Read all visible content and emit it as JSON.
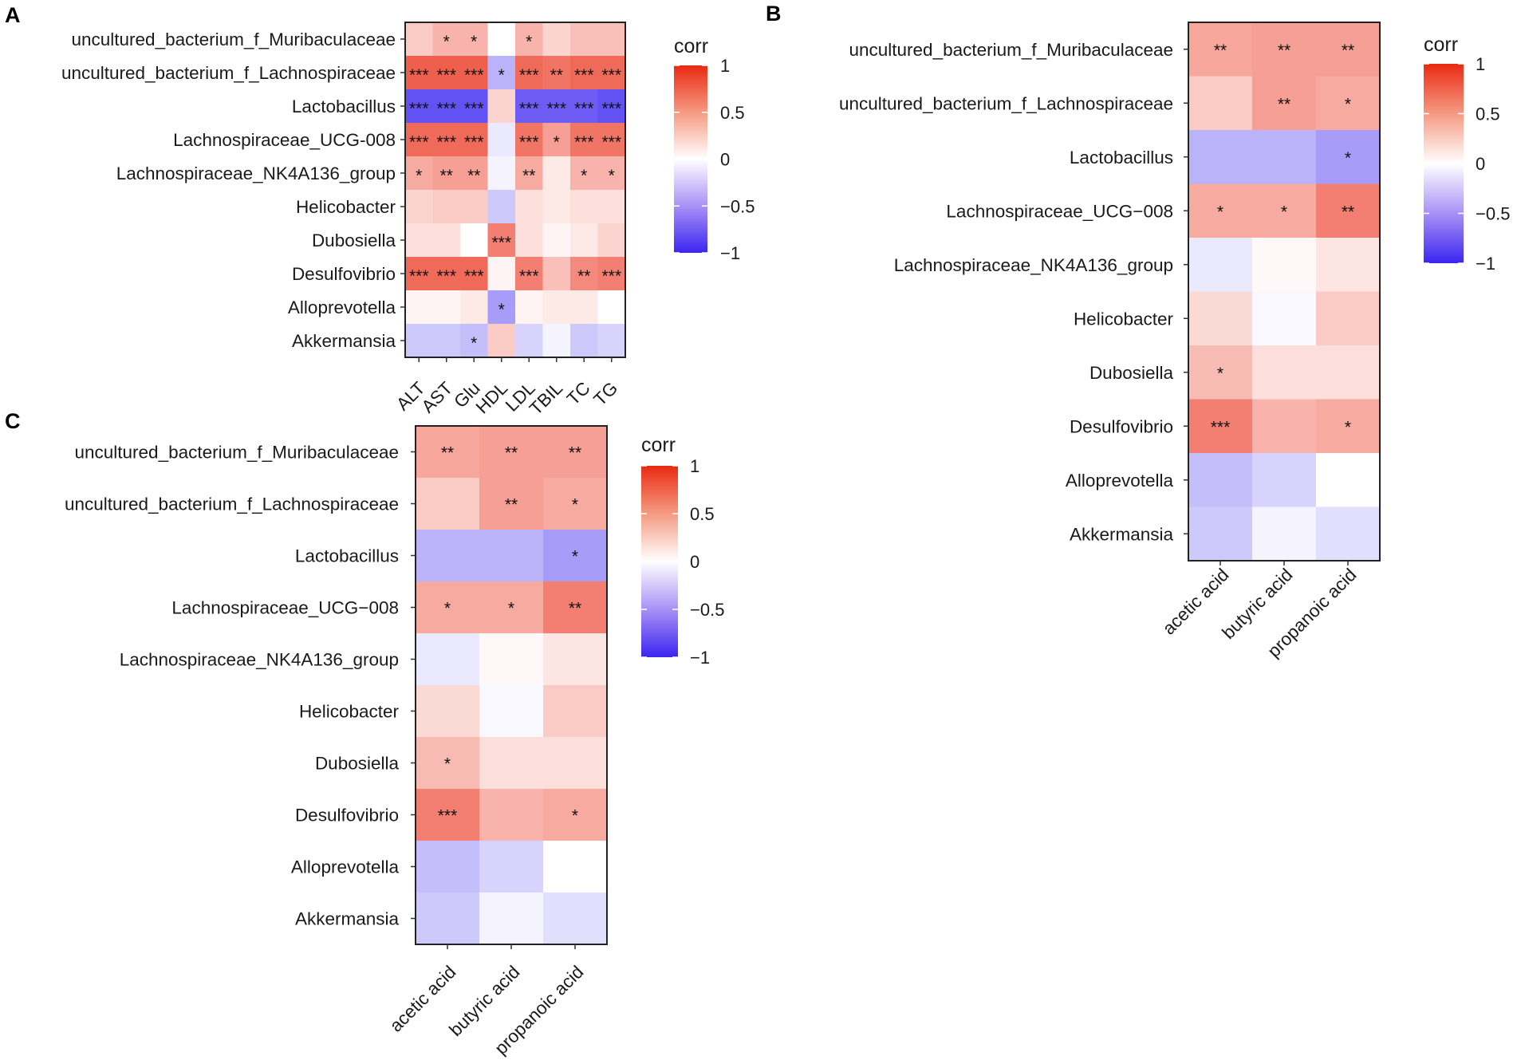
{
  "colors": {
    "negative": "#3b25f0",
    "neutral": "#ffffff",
    "positive": "#ea2a12",
    "frame": "#222222",
    "tick": "#333333"
  },
  "chart_data": [
    {
      "panel": "A",
      "type": "heatmap",
      "title": "",
      "rows": [
        "uncultured_bacterium_f_Muribaculaceae",
        "uncultured_bacterium_f_Lachnospiraceae",
        "Lactobacillus",
        "Lachnospiraceae_UCG-008",
        "Lachnospiraceae_NK4A136_group",
        "Helicobacter",
        "Dubosiella",
        "Desulfovibrio",
        "Alloprevotella",
        "Akkermansia"
      ],
      "columns": [
        "ALT",
        "AST",
        "Glu",
        "HDL",
        "LDL",
        "TBIL",
        "TC",
        "TG"
      ],
      "values": [
        [
          0.25,
          0.35,
          0.35,
          0.0,
          0.35,
          0.2,
          0.3,
          0.3
        ],
        [
          0.75,
          0.75,
          0.75,
          -0.35,
          0.7,
          0.65,
          0.7,
          0.7
        ],
        [
          -0.8,
          -0.8,
          -0.8,
          0.2,
          -0.75,
          -0.75,
          -0.75,
          -0.8
        ],
        [
          0.7,
          0.7,
          0.7,
          -0.1,
          0.65,
          0.45,
          0.65,
          0.65
        ],
        [
          0.4,
          0.45,
          0.45,
          -0.05,
          0.4,
          0.1,
          0.35,
          0.35
        ],
        [
          0.2,
          0.25,
          0.25,
          -0.25,
          0.15,
          0.1,
          0.15,
          0.15
        ],
        [
          0.15,
          0.15,
          0.0,
          0.6,
          0.15,
          0.05,
          0.1,
          0.2
        ],
        [
          0.7,
          0.7,
          0.7,
          0.05,
          0.6,
          0.3,
          0.55,
          0.6
        ],
        [
          0.05,
          0.05,
          0.1,
          -0.45,
          0.05,
          0.1,
          0.1,
          0.0
        ],
        [
          -0.25,
          -0.25,
          -0.3,
          0.25,
          -0.2,
          -0.05,
          -0.25,
          -0.2
        ]
      ],
      "significance": [
        [
          "",
          "*",
          "*",
          "",
          "*",
          "",
          "",
          ""
        ],
        [
          "***",
          "***",
          "***",
          "*",
          "***",
          "**",
          "***",
          "***"
        ],
        [
          "***",
          "***",
          "***",
          "",
          "***",
          "***",
          "***",
          "***"
        ],
        [
          "***",
          "***",
          "***",
          "",
          "***",
          "*",
          "***",
          "***"
        ],
        [
          "*",
          "**",
          "**",
          "",
          "**",
          "",
          "*",
          "*"
        ],
        [
          "",
          "",
          "",
          "",
          "",
          "",
          "",
          ""
        ],
        [
          "",
          "",
          "",
          "***",
          "",
          "",
          "",
          ""
        ],
        [
          "***",
          "***",
          "***",
          "",
          "***",
          "",
          "**",
          "***"
        ],
        [
          "",
          "",
          "",
          "*",
          "",
          "",
          "",
          ""
        ],
        [
          "",
          "",
          "*",
          "",
          "",
          "",
          "",
          ""
        ]
      ],
      "legend": {
        "title": "corr",
        "ticks": [
          "1",
          "0.5",
          "0",
          "−0.5",
          "−1"
        ],
        "range": [
          -1,
          1
        ]
      }
    },
    {
      "panel": "B",
      "type": "heatmap",
      "title": "",
      "rows": [
        "uncultured_bacterium_f_Muribaculaceae",
        "uncultured_bacterium_f_Lachnospiraceae",
        "Lactobacillus",
        "Lachnospiraceae_UCG−008",
        "Lachnospiraceae_NK4A136_group",
        "Helicobacter",
        "Dubosiella",
        "Desulfovibrio",
        "Alloprevotella",
        "Akkermansia"
      ],
      "columns": [
        "acetic acid",
        "butyric acid",
        "propanoic acid"
      ],
      "values": [
        [
          0.42,
          0.45,
          0.45
        ],
        [
          0.25,
          0.45,
          0.4
        ],
        [
          -0.35,
          -0.35,
          -0.45
        ],
        [
          0.4,
          0.4,
          0.6
        ],
        [
          -0.1,
          0.03,
          0.12
        ],
        [
          0.18,
          -0.03,
          0.25
        ],
        [
          0.32,
          0.15,
          0.15
        ],
        [
          0.6,
          0.35,
          0.4
        ],
        [
          -0.3,
          -0.2,
          0.0
        ],
        [
          -0.25,
          -0.05,
          -0.15
        ]
      ],
      "significance": [
        [
          "**",
          "**",
          "**"
        ],
        [
          "",
          "**",
          "*"
        ],
        [
          "",
          "",
          "*"
        ],
        [
          "*",
          "*",
          "**"
        ],
        [
          "",
          "",
          ""
        ],
        [
          "",
          "",
          ""
        ],
        [
          "*",
          "",
          ""
        ],
        [
          "***",
          "",
          "*"
        ],
        [
          "",
          "",
          ""
        ],
        [
          "",
          "",
          ""
        ]
      ],
      "legend": {
        "title": "corr",
        "ticks": [
          "1",
          "0.5",
          "0",
          "−0.5",
          "−1"
        ],
        "range": [
          -1,
          1
        ]
      }
    },
    {
      "panel": "C",
      "type": "heatmap",
      "title": "",
      "rows": [
        "uncultured_bacterium_f_Muribaculaceae",
        "uncultured_bacterium_f_Lachnospiraceae",
        "Lactobacillus",
        "Lachnospiraceae_UCG−008",
        "Lachnospiraceae_NK4A136_group",
        "Helicobacter",
        "Dubosiella",
        "Desulfovibrio",
        "Alloprevotella",
        "Akkermansia"
      ],
      "columns": [
        "acetic acid",
        "butyric acid",
        "propanoic acid"
      ],
      "values": [
        [
          0.42,
          0.45,
          0.45
        ],
        [
          0.25,
          0.45,
          0.4
        ],
        [
          -0.35,
          -0.35,
          -0.45
        ],
        [
          0.4,
          0.4,
          0.6
        ],
        [
          -0.1,
          0.03,
          0.12
        ],
        [
          0.18,
          -0.03,
          0.25
        ],
        [
          0.32,
          0.15,
          0.15
        ],
        [
          0.6,
          0.35,
          0.4
        ],
        [
          -0.3,
          -0.2,
          0.0
        ],
        [
          -0.25,
          -0.05,
          -0.15
        ]
      ],
      "significance": [
        [
          "**",
          "**",
          "**"
        ],
        [
          "",
          "**",
          "*"
        ],
        [
          "",
          "",
          "*"
        ],
        [
          "*",
          "*",
          "**"
        ],
        [
          "",
          "",
          ""
        ],
        [
          "",
          "",
          ""
        ],
        [
          "*",
          "",
          ""
        ],
        [
          "***",
          "",
          "*"
        ],
        [
          "",
          "",
          ""
        ],
        [
          "",
          "",
          ""
        ]
      ],
      "legend": {
        "title": "corr",
        "ticks": [
          "1",
          "0.5",
          "0",
          "−0.5",
          "−1"
        ],
        "range": [
          -1,
          1
        ]
      }
    }
  ]
}
